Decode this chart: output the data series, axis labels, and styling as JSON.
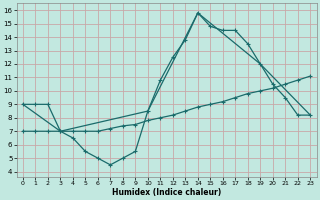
{
  "bg_color": "#c2e8e0",
  "grid_color": "#c8a8a8",
  "line_color": "#1a6b6b",
  "xlabel": "Humidex (Indice chaleur)",
  "xlim": [
    -0.5,
    23.5
  ],
  "ylim": [
    3.6,
    16.5
  ],
  "xticks": [
    0,
    1,
    2,
    3,
    4,
    5,
    6,
    7,
    8,
    9,
    10,
    11,
    12,
    13,
    14,
    15,
    16,
    17,
    18,
    19,
    20,
    21,
    22,
    23
  ],
  "yticks": [
    4,
    5,
    6,
    7,
    8,
    9,
    10,
    11,
    12,
    13,
    14,
    15,
    16
  ],
  "line1_x": [
    0,
    1,
    2,
    3,
    4,
    5,
    6,
    7,
    8,
    9,
    10,
    11,
    12,
    13,
    14,
    15,
    16,
    17,
    18,
    19,
    20,
    21,
    22,
    23
  ],
  "line1_y": [
    9,
    9,
    9,
    7,
    6.5,
    5.5,
    5,
    4.5,
    5,
    5.5,
    8.5,
    10.8,
    12.5,
    13.8,
    15.8,
    14.8,
    14.5,
    14.5,
    13.5,
    12,
    10.5,
    9.5,
    8.2,
    8.2
  ],
  "line2_x": [
    0,
    1,
    2,
    3,
    4,
    5,
    6,
    7,
    8,
    9,
    10,
    11,
    12,
    13,
    14,
    15,
    16,
    17,
    18,
    19,
    20,
    21,
    22,
    23
  ],
  "line2_y": [
    7,
    7,
    7,
    7,
    7,
    7,
    7,
    7.2,
    7.4,
    7.5,
    7.8,
    8.0,
    8.2,
    8.5,
    8.8,
    9.0,
    9.2,
    9.5,
    9.8,
    10.0,
    10.2,
    10.5,
    10.8,
    11.1
  ],
  "line3_x": [
    0,
    3,
    10,
    14,
    19,
    23
  ],
  "line3_y": [
    9,
    7,
    8.5,
    15.8,
    12,
    8.2
  ]
}
